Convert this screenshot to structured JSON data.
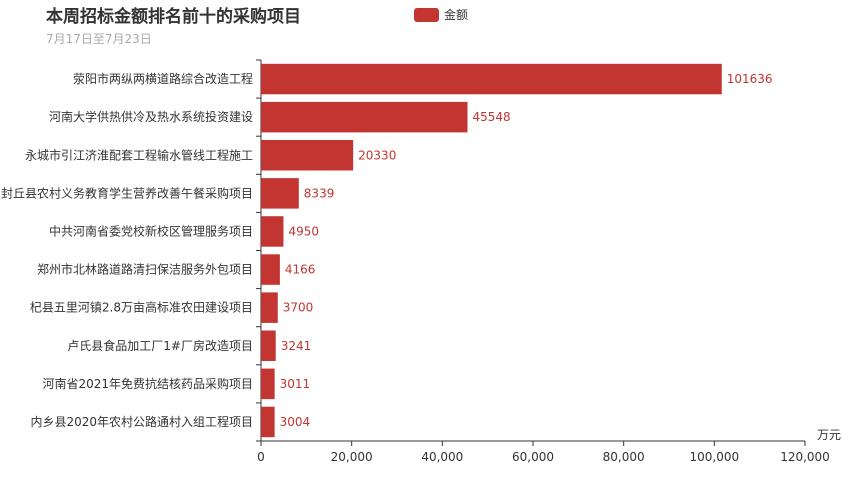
{
  "chart_data": {
    "type": "bar",
    "orientation": "horizontal",
    "title": "本周招标金额排名前十的采购项目",
    "subtitle": "7月17日至7月23日",
    "categories": [
      "荥阳市两纵两横道路综合改造工程",
      "河南大学供热供冷及热水系统投资建设",
      "永城市引江济淮配套工程输水管线工程施工",
      "封丘县农村义务教育学生营养改善午餐采购项目",
      "中共河南省委党校新校区管理服务项目",
      "郑州市北林路道路清扫保洁服务外包项目",
      "杞县五里河镇2.8万亩高标准农田建设项目",
      "卢氏县食品加工厂1#厂房改造项目",
      "河南省2021年免费抗结核药品采购项目",
      "内乡县2020年农村公路通村入组工程项目"
    ],
    "series": [
      {
        "name": "金额",
        "values": [
          101636,
          45548,
          20330,
          8339,
          4950,
          4166,
          3700,
          3241,
          3011,
          3004
        ],
        "color": "#c23531"
      }
    ],
    "xlabel": "万元",
    "ylabel": "",
    "xlim": [
      0,
      120000
    ],
    "x_ticks": [
      "0",
      "20,000",
      "40,000",
      "60,000",
      "80,000",
      "100,000",
      "120,000"
    ],
    "x_tick_values": [
      0,
      20000,
      40000,
      60000,
      80000,
      100000,
      120000
    ],
    "grid": false,
    "legend_position": "top-center",
    "data_labels": true
  }
}
